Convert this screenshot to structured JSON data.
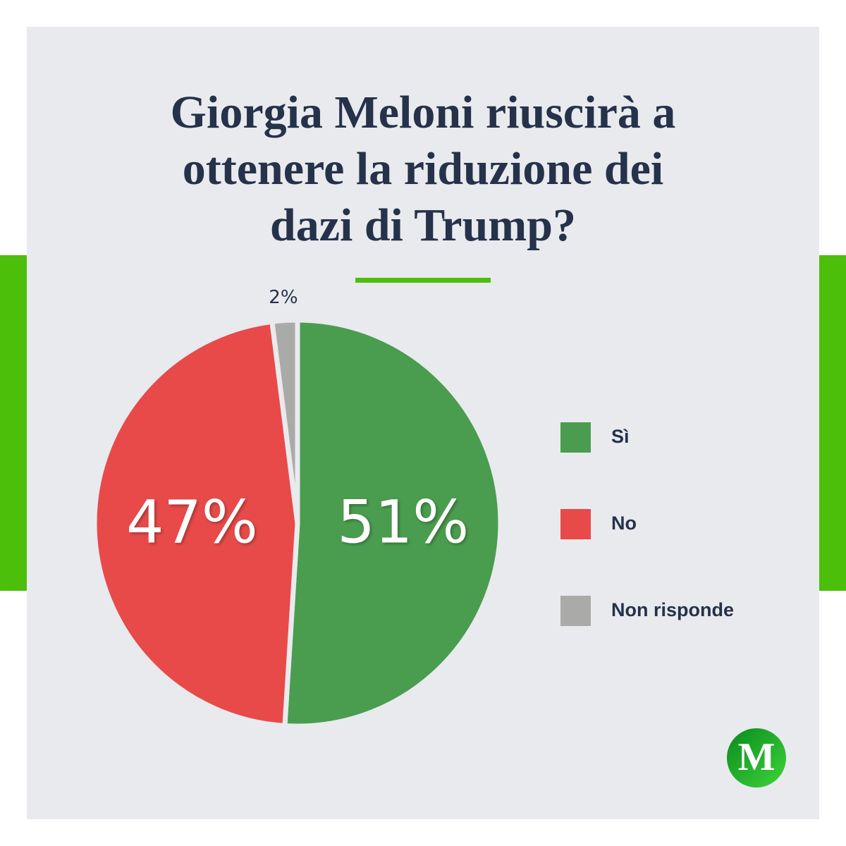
{
  "chart_data": {
    "type": "pie",
    "title": "Giorgia Meloni riuscirà a ottenere la riduzione dei dazi di Trump?",
    "categories": [
      "Sì",
      "No",
      "Non risponde"
    ],
    "values": [
      51,
      47,
      2
    ],
    "value_labels": [
      "51%",
      "47%",
      "2%"
    ],
    "colors": [
      "#4a9d4f",
      "#e84a4a",
      "#aaaaa8"
    ],
    "legend": "right"
  },
  "logo": "M"
}
